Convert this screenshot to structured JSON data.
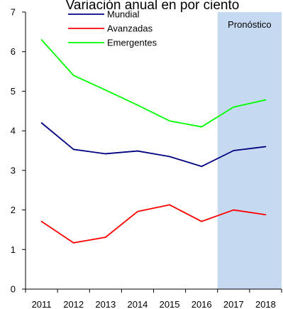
{
  "chart_data": {
    "type": "line",
    "title": "Variación anual en por ciento",
    "xlabel": "",
    "ylabel": "",
    "categories": [
      "2011",
      "2012",
      "2013",
      "2014",
      "2015",
      "2016",
      "2017",
      "2018"
    ],
    "y_ticks": [
      "0",
      "1",
      "2",
      "3",
      "4",
      "5",
      "6",
      "7"
    ],
    "ylim": [
      0,
      7
    ],
    "grid": false,
    "legend_position": "top-center",
    "series": [
      {
        "name": "Mundial",
        "color": "#000080",
        "values": [
          4.2,
          3.53,
          3.42,
          3.49,
          3.35,
          3.1,
          3.5,
          3.6
        ]
      },
      {
        "name": "Avanzadas",
        "color": "#ff0000",
        "values": [
          1.71,
          1.17,
          1.31,
          1.96,
          2.13,
          1.71,
          2.0,
          1.88
        ]
      },
      {
        "name": "Emergentes",
        "color": "#00ff00",
        "values": [
          6.3,
          5.4,
          5.03,
          4.65,
          4.25,
          4.1,
          4.6,
          4.78
        ]
      }
    ],
    "shaded_region": {
      "from": "2017",
      "to": "2018",
      "label": "Pronóstico",
      "color": "#c5d9f1"
    }
  }
}
